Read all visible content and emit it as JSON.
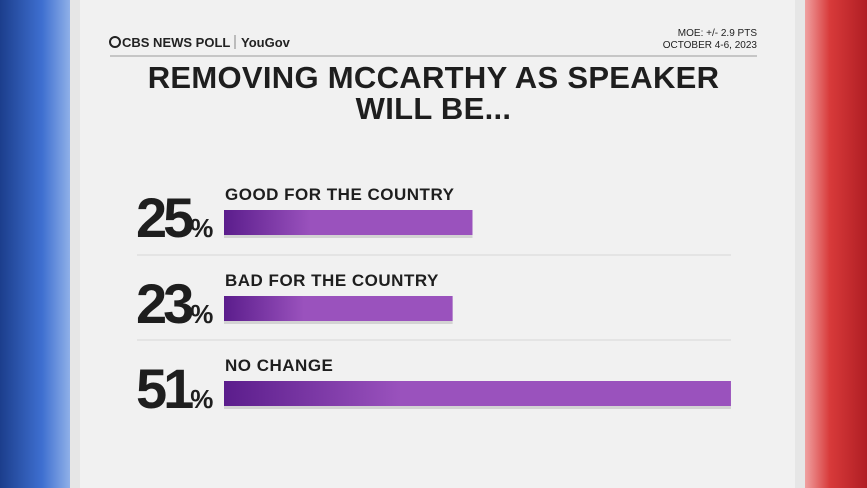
{
  "header": {
    "brand": "CBS NEWS POLL",
    "partner": "YouGov",
    "moe": "MOE: +/- 2.9 PTS",
    "dates": "OCTOBER 4-6, 2023"
  },
  "chart_data": {
    "type": "bar",
    "title": "REMOVING MCCARTHY AS SPEAKER WILL BE...",
    "categories": [
      "GOOD FOR THE COUNTRY",
      "BAD FOR THE COUNTRY",
      "NO CHANGE"
    ],
    "values": [
      25,
      23,
      51
    ],
    "value_labels": [
      "25%",
      "23%",
      "51%"
    ],
    "color": "#9a52bd"
  }
}
